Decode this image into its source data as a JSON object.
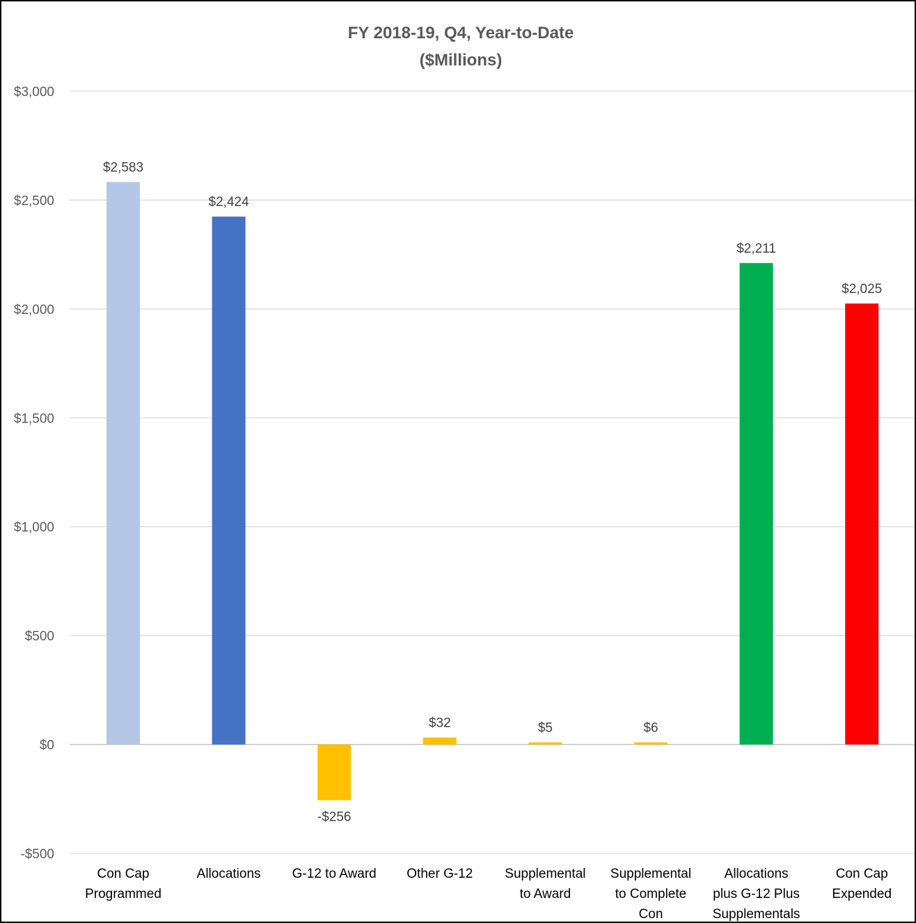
{
  "chart_data": {
    "type": "bar",
    "title": "FY 2018-19, Q4, Year-to-Date",
    "subtitle": "($Millions)",
    "xlabel": "",
    "ylabel": "",
    "ylim": [
      -500,
      3000
    ],
    "yticks": [
      {
        "value": 3000,
        "label": "$3,000"
      },
      {
        "value": 2500,
        "label": "$2,500"
      },
      {
        "value": 2000,
        "label": "$2,000"
      },
      {
        "value": 1500,
        "label": "$1,500"
      },
      {
        "value": 1000,
        "label": "$1,000"
      },
      {
        "value": 500,
        "label": "$500"
      },
      {
        "value": 0,
        "label": "$0"
      },
      {
        "value": -500,
        "label": "-$500"
      }
    ],
    "grid": true,
    "legend": "none",
    "categories": [
      [
        "Con Cap",
        "Programmed"
      ],
      [
        "Allocations"
      ],
      [
        "G-12 to Award"
      ],
      [
        "Other G-12"
      ],
      [
        "Supplemental",
        "to Award"
      ],
      [
        "Supplemental",
        "to Complete",
        "Con"
      ],
      [
        "Allocations",
        "plus G-12 Plus",
        "Supplementals"
      ],
      [
        "Con Cap",
        "Expended"
      ]
    ],
    "values": [
      2583,
      2424,
      -256,
      32,
      5,
      6,
      2211,
      2025
    ],
    "data_labels": [
      "$2,583",
      "$2,424",
      "-$256",
      "$32",
      "$5",
      "$6",
      "$2,211",
      "$2,025"
    ],
    "colors": [
      "#B4C7E7",
      "#4472C4",
      "#FFC000",
      "#FFC000",
      "#FFC000",
      "#FFC000",
      "#00B050",
      "#FF0000"
    ]
  }
}
